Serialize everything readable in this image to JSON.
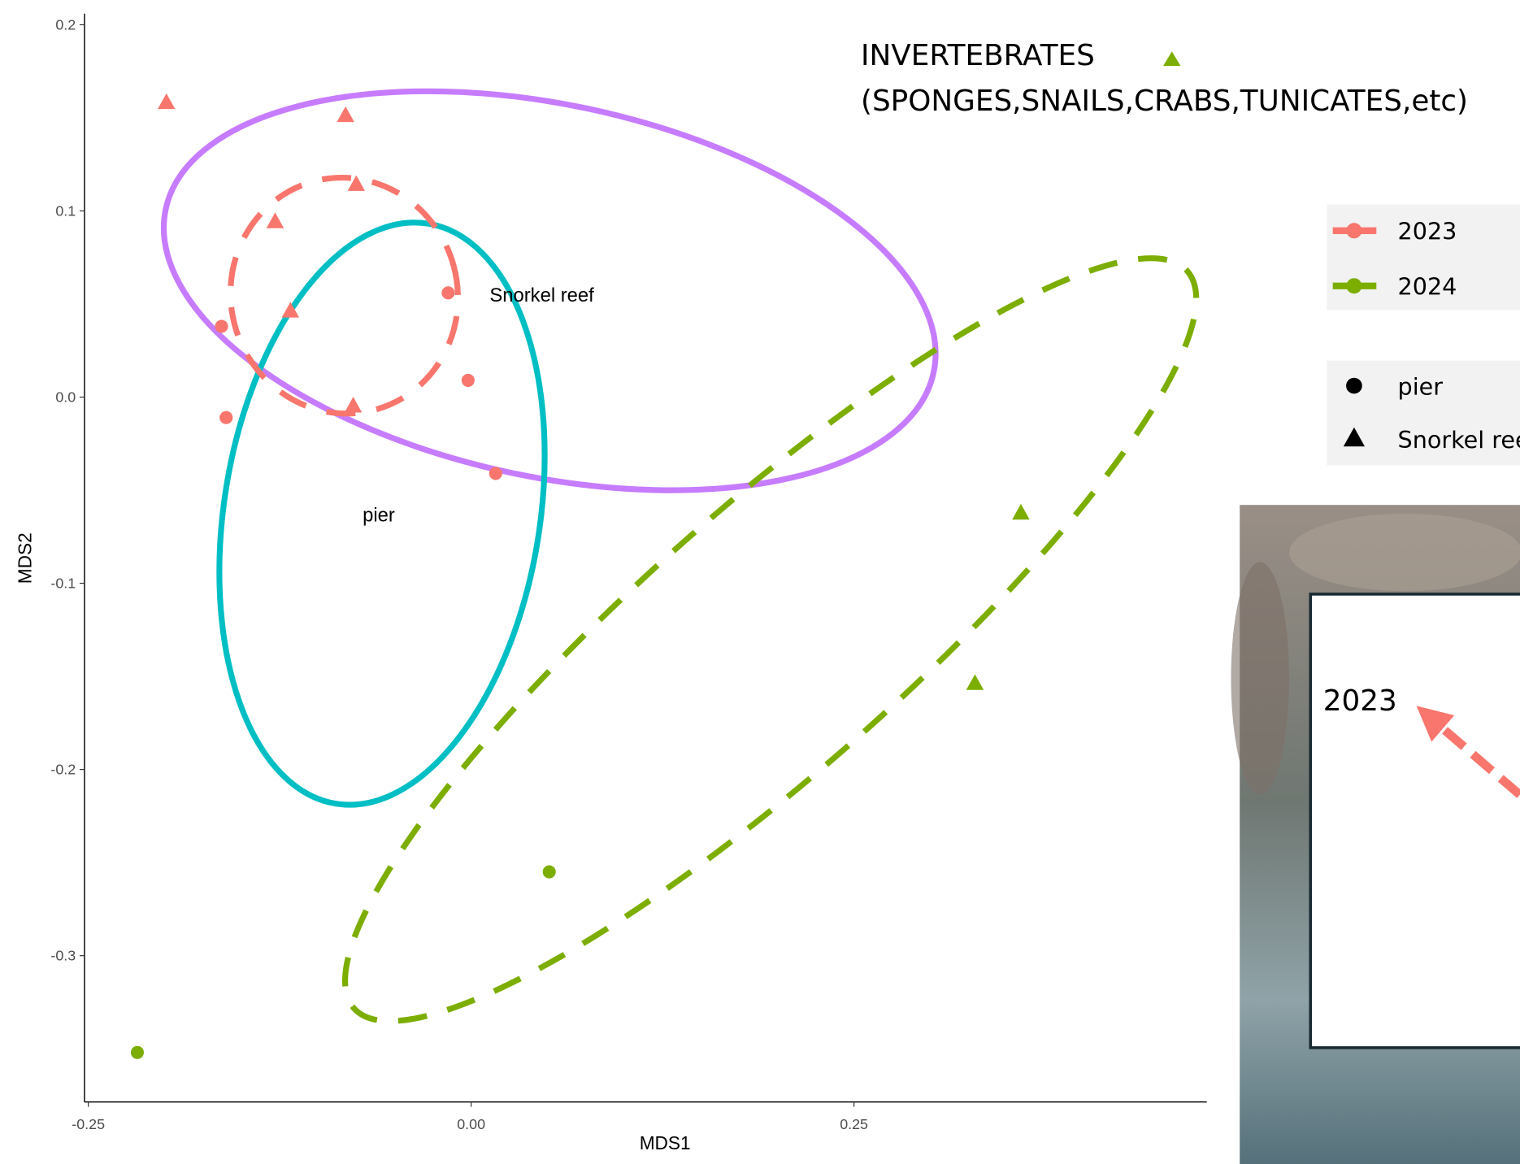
{
  "chart_data": {
    "type": "scatter",
    "xlabel": "MDS1",
    "ylabel": "MDS2",
    "xlim": [
      -0.2525,
      0.4804
    ],
    "ylim": [
      -0.3786,
      0.206
    ],
    "xticks": [
      -0.25,
      {
        "value": 0,
        "label": "0.00"
      },
      0.25
    ],
    "yticks": [
      0.2,
      0.1,
      {
        "value": 0,
        "label": "0.0"
      },
      -0.1,
      -0.2,
      -0.3
    ],
    "series": [
      {
        "name": "2023",
        "color": "#F8766D",
        "x": [
          -0.199,
          -0.082,
          -0.075,
          -0.128,
          -0.118,
          -0.077,
          -0.163,
          -0.16,
          -0.015,
          -0.002,
          0.016
        ],
        "values": [
          0.158,
          0.151,
          0.114,
          0.094,
          0.046,
          -0.005,
          0.038,
          -0.011,
          0.056,
          0.009,
          -0.041
        ],
        "groups": [
          "Snorkel reef",
          "Snorkel reef",
          "Snorkel reef",
          "Snorkel reef",
          "Snorkel reef",
          "Snorkel reef",
          "pier",
          "pier",
          "pier",
          "pier",
          "pier"
        ]
      },
      {
        "name": "2024",
        "color": "#7CAE00",
        "x": [
          0.359,
          0.329,
          0.051,
          -0.218
        ],
        "values": [
          -0.0625,
          -0.154,
          -0.255,
          -0.352
        ],
        "groups": [
          "Snorkel reef",
          "Snorkel reef",
          "pier",
          "pier"
        ]
      }
    ],
    "shape_legend": [
      {
        "name": "pier",
        "shape": "circle"
      },
      {
        "name": "Snorkel reef",
        "shape": "triangle"
      }
    ],
    "annotations": [
      "Snorkel reef",
      "pier"
    ],
    "note": [
      "INVERTEBRATES",
      "(SPONGES,SNAILS,CRABS,TUNICATES,etc)"
    ],
    "inset_label": "2023"
  }
}
